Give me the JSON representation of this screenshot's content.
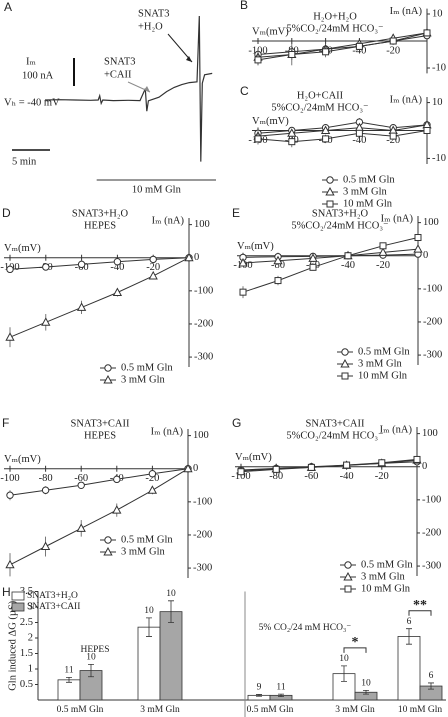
{
  "chart_data": [
    {
      "panel": "A",
      "type": "trace",
      "y_label": "Iₘ",
      "holding": "Vₕ = -40 mV",
      "color": "#333333",
      "x": [
        0,
        2,
        4,
        6,
        7,
        7.2,
        7.4,
        7.6,
        9,
        11,
        12.5,
        13.2,
        13.4,
        13.6,
        15,
        16,
        17,
        18,
        19,
        20,
        20.3,
        20.5,
        20.7,
        21,
        22
      ],
      "values": [
        0,
        1,
        0,
        -1,
        0,
        15,
        -12,
        0,
        -2,
        -1,
        -2,
        40,
        -40,
        -3,
        10,
        30,
        45,
        55,
        62,
        65,
        300,
        -220,
        60,
        90,
        95
      ],
      "scale_bars": [
        {
          "label": "5 min",
          "value": 5,
          "axis": "x"
        },
        {
          "label": "100 nA",
          "value": 100,
          "axis": "y"
        }
      ],
      "application": {
        "label": "10 mM Gln",
        "start": 6.8,
        "end": 22.5
      },
      "annotations": [
        {
          "lines": [
            "SNAT3",
            "+H₂O"
          ],
          "color": "#222222"
        },
        {
          "lines": [
            "SNAT3",
            "+CAII"
          ],
          "color": "#8c8c8c"
        }
      ]
    },
    {
      "panel": "B",
      "type": "line",
      "title_lines": [
        "H₂O+H₂O",
        "5%CO₂/24mM HCO₃⁻"
      ],
      "x_label": "Vₘ(mV)",
      "y_label": "Iₘ (nA)",
      "x": [
        -100,
        -80,
        -60,
        -40,
        -20,
        0
      ],
      "xlim": [
        -100,
        0
      ],
      "xticks": [
        -100,
        -80,
        -60,
        -40,
        -20
      ],
      "ylim": [
        -12,
        12
      ],
      "yticks": [
        -10,
        10
      ],
      "legend": false,
      "series": [
        {
          "marker": "circle",
          "color": "#333333",
          "values": [
            -5,
            -4,
            -3,
            -2,
            0,
            2
          ],
          "errors": [
            2,
            2,
            1.5,
            1,
            1,
            1
          ]
        },
        {
          "marker": "triangle",
          "color": "#333333",
          "values": [
            -6,
            -5,
            -3,
            -1,
            1,
            3
          ],
          "errors": [
            3,
            4,
            2,
            1.5,
            1,
            1
          ]
        },
        {
          "marker": "square",
          "color": "#333333",
          "values": [
            -7,
            -5,
            -4,
            -2,
            0,
            3
          ],
          "errors": [
            2,
            2,
            2,
            1.5,
            1,
            1
          ]
        }
      ]
    },
    {
      "panel": "C",
      "type": "line",
      "title_lines": [
        "H₂O+CAII",
        "5%CO₂/24mM HCO₃⁻"
      ],
      "x_label": "Vₘ(mV)",
      "y_label": "Iₘ (nA)",
      "x": [
        -100,
        -80,
        -60,
        -40,
        -20,
        0
      ],
      "xlim": [
        -100,
        0
      ],
      "xticks": [
        -100,
        -80,
        -60,
        -40,
        -20
      ],
      "ylim": [
        -12,
        12
      ],
      "yticks": [
        -10,
        10
      ],
      "legend": true,
      "series": [
        {
          "name": "0.5 mM Gln",
          "marker": "circle",
          "color": "#333333",
          "values": [
            -1,
            0,
            1,
            3,
            1,
            2
          ],
          "errors": [
            1,
            1,
            1,
            1.5,
            1,
            1
          ]
        },
        {
          "name": "3 mM Gln",
          "marker": "triangle",
          "color": "#333333",
          "values": [
            -2,
            -1,
            0,
            1,
            0,
            2
          ],
          "errors": [
            1.5,
            1,
            1,
            1,
            1,
            1
          ]
        },
        {
          "name": "10 mM Gln",
          "marker": "square",
          "color": "#333333",
          "values": [
            -3,
            -4,
            -3,
            -1,
            -2,
            0
          ],
          "errors": [
            2,
            2,
            1.5,
            1,
            1,
            1
          ]
        }
      ]
    },
    {
      "panel": "D",
      "type": "line",
      "title_lines": [
        "SNAT3+H₂O",
        "HEPES"
      ],
      "x_label": "Vₘ(mV)",
      "y_label": "Iₘ (nA)",
      "x": [
        -100,
        -80,
        -60,
        -40,
        -20,
        0
      ],
      "xlim": [
        -100,
        0
      ],
      "xticks": [
        -100,
        -80,
        -60,
        -40,
        -20
      ],
      "ylim": [
        -330,
        120
      ],
      "yticks": [
        -300,
        -200,
        -100,
        0,
        100
      ],
      "legend": true,
      "series": [
        {
          "name": "0.5 mM Gln",
          "marker": "circle",
          "color": "#333333",
          "values": [
            -35,
            -28,
            -20,
            -12,
            -5,
            0
          ],
          "errors": [
            10,
            8,
            6,
            5,
            4,
            2
          ]
        },
        {
          "name": "3 mM Gln",
          "marker": "triangle",
          "color": "#333333",
          "values": [
            -240,
            -195,
            -150,
            -105,
            -55,
            0
          ],
          "errors": [
            30,
            25,
            20,
            12,
            8,
            3
          ]
        }
      ]
    },
    {
      "panel": "E",
      "type": "line",
      "title_lines": [
        "SNAT3+H₂O",
        "5%CO₂/24mM HCO₃⁻"
      ],
      "x_label": "Vₘ(mV)",
      "y_label": "Iₘ (nA)",
      "x": [
        -100,
        -80,
        -60,
        -40,
        -20,
        0
      ],
      "xlim": [
        -100,
        0
      ],
      "xticks": [
        -100,
        -80,
        -60,
        -40,
        -20
      ],
      "ylim": [
        -330,
        120
      ],
      "yticks": [
        -300,
        -200,
        -100,
        0,
        100
      ],
      "legend": true,
      "series": [
        {
          "name": "0.5 mM Gln",
          "marker": "circle",
          "color": "#333333",
          "values": [
            -5,
            -3,
            -2,
            0,
            2,
            5
          ],
          "errors": [
            5,
            4,
            3,
            3,
            3,
            3
          ]
        },
        {
          "name": "3 mM Gln",
          "marker": "triangle",
          "color": "#333333",
          "values": [
            -22,
            -15,
            -8,
            0,
            10,
            20
          ],
          "errors": [
            8,
            6,
            5,
            4,
            5,
            6
          ]
        },
        {
          "name": "10 mM Gln",
          "marker": "square",
          "color": "#333333",
          "values": [
            -110,
            -75,
            -35,
            0,
            30,
            55
          ],
          "errors": [
            18,
            14,
            10,
            6,
            8,
            12
          ]
        }
      ]
    },
    {
      "panel": "F",
      "type": "line",
      "title_lines": [
        "SNAT3+CAII",
        "HEPES"
      ],
      "x_label": "Vₘ(mV)",
      "y_label": "Iₘ (nA)",
      "x": [
        -100,
        -80,
        -60,
        -40,
        -20,
        0
      ],
      "xlim": [
        -100,
        0
      ],
      "xticks": [
        -100,
        -80,
        -60,
        -40,
        -20
      ],
      "ylim": [
        -330,
        120
      ],
      "yticks": [
        -300,
        -200,
        -100,
        0,
        100
      ],
      "legend": true,
      "series": [
        {
          "name": "0.5 mM Gln",
          "marker": "circle",
          "color": "#333333",
          "values": [
            -80,
            -65,
            -50,
            -32,
            -15,
            0
          ],
          "errors": [
            15,
            12,
            10,
            8,
            5,
            2
          ]
        },
        {
          "name": "3 mM Gln",
          "marker": "triangle",
          "color": "#333333",
          "values": [
            -290,
            -235,
            -180,
            -125,
            -65,
            0
          ],
          "errors": [
            35,
            30,
            25,
            20,
            12,
            3
          ]
        }
      ]
    },
    {
      "panel": "G",
      "type": "line",
      "title_lines": [
        "SNAT3+CAII",
        "5%CO₂/24mM HCO₃⁻"
      ],
      "x_label": "Vₘ(mV)",
      "y_label": "Iₘ (nA)",
      "x": [
        -100,
        -80,
        -60,
        -40,
        -20,
        0
      ],
      "xlim": [
        -100,
        0
      ],
      "xticks": [
        -100,
        -80,
        -60,
        -40,
        -20
      ],
      "ylim": [
        -330,
        120
      ],
      "yticks": [
        -300,
        -200,
        -100,
        0,
        100
      ],
      "legend": true,
      "series": [
        {
          "name": "0.5 mM Gln",
          "marker": "circle",
          "color": "#333333",
          "values": [
            -10,
            -5,
            0,
            5,
            10,
            15
          ],
          "errors": [
            5,
            5,
            4,
            4,
            5,
            5
          ]
        },
        {
          "name": "3 mM Gln",
          "marker": "triangle",
          "color": "#333333",
          "values": [
            -12,
            -6,
            -2,
            4,
            10,
            20
          ],
          "errors": [
            5,
            5,
            4,
            4,
            5,
            6
          ]
        },
        {
          "name": "10 mM Gln",
          "marker": "square",
          "color": "#333333",
          "values": [
            -15,
            -8,
            -2,
            5,
            12,
            22
          ],
          "errors": [
            6,
            5,
            4,
            4,
            5,
            6
          ]
        }
      ]
    },
    {
      "panel": "H",
      "type": "bar",
      "y_label": "Gln induced  ΔG (µS)",
      "categories": [
        "0.5 mM Gln",
        "3 mM Gln",
        "0.5 mM Gln",
        "3 mM Gln",
        "10 mM Gln"
      ],
      "groups": [
        "HEPES",
        "5% CO₂/24 mM HCO₃⁻"
      ],
      "ylim": [
        0,
        3.5
      ],
      "yticks": [
        0.5,
        1,
        1.5,
        2,
        2.5,
        3,
        3.5
      ],
      "series": [
        {
          "name": "SNAT3+H₂O",
          "color": "#ffffff",
          "values": [
            0.65,
            2.35,
            0.15,
            0.85,
            2.05
          ],
          "errors": [
            0.08,
            0.3,
            0.03,
            0.25,
            0.25
          ],
          "n": [
            11,
            10,
            9,
            10,
            6
          ]
        },
        {
          "name": "SNAT3+CAII",
          "color": "#a6a6a6",
          "values": [
            0.95,
            2.85,
            0.15,
            0.25,
            0.45
          ],
          "errors": [
            0.2,
            0.35,
            0.04,
            0.06,
            0.1
          ],
          "n": [
            10,
            10,
            11,
            10,
            6
          ]
        }
      ],
      "significance": [
        "*",
        "**"
      ]
    }
  ]
}
